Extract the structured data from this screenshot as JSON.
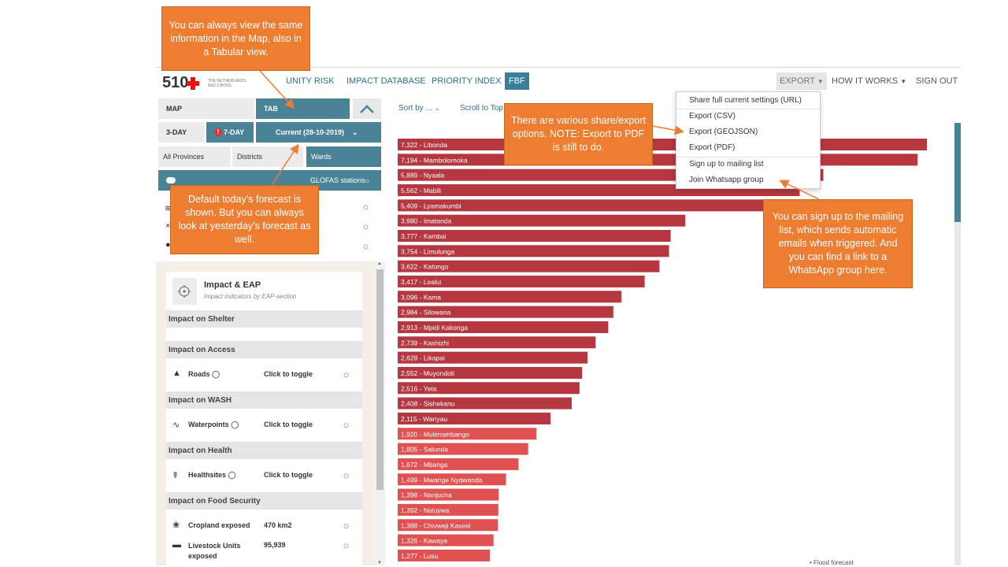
{
  "navbar": {
    "logo_number": "510",
    "logo_org": "THE NETHERLANDS RED CROSS",
    "community_risk_partial": "UNITY RISK",
    "impact_database": "IMPACT DATABASE",
    "priority_index": "PRIORITY INDEX",
    "fbf": "FBF",
    "export": "EXPORT",
    "how_it_works": "HOW IT WORKS",
    "sign_out": "SIGN OUT"
  },
  "view_toggle": {
    "map": "MAP",
    "tab": "TAB"
  },
  "forecast_toggle": {
    "three_day": "3-DAY",
    "seven_day": "7-DAY",
    "current": "Current (28-10-2019)"
  },
  "admin_levels": {
    "all_provinces": "All Provinces",
    "districts": "Districts",
    "wards": "Wards"
  },
  "layer_bar": {
    "glofas": "GLOFAS stations"
  },
  "card": {
    "title": "Impact & EAP",
    "subtitle": "Impact indicators by EAP-section",
    "sections": {
      "shelter": "Impact on Shelter",
      "access": "Impact on Access",
      "wash": "Impact on WASH",
      "health": "Impact on Health",
      "food": "Impact on Food Security"
    },
    "rows": {
      "roads": {
        "label": "Roads",
        "value": "Click to toggle"
      },
      "waterpoints": {
        "label": "Waterpoints",
        "value": "Click to toggle"
      },
      "healthsites": {
        "label": "Healthsites",
        "value": "Click to toggle"
      },
      "cropland": {
        "label": "Cropland exposed",
        "value": "470 km2"
      },
      "livestock": {
        "label": "Livestock Units exposed",
        "value": "95,939"
      }
    }
  },
  "chart_controls": {
    "sort_by": "Sort by ...",
    "scroll_top": "Scroll to Top"
  },
  "export_menu": {
    "share": "Share full current settings (URL)",
    "csv": "Export (CSV)",
    "geojson": "Export (GEOJSON)",
    "pdf": "Export (PDF)",
    "mailing": "Sign up to mailing list",
    "whatsapp": "Join Whatsapp group"
  },
  "callouts": {
    "tab_view": "You can always view the same information in the Map, also in a Tabular view.",
    "forecast": "Default today’s forecast is shown. But you can always look at yesterday’s forecast as well.",
    "export": "There are various share/export options. NOTE: Export to PDF is still to do.",
    "mailing": "You can sign up to the mailing list, which sends automatic emails when triggered. And you can find a link to a  WhatsApp group here."
  },
  "footer_snip": "• Flood forecast",
  "colors": {
    "bar_dark": "#b5373f",
    "bar_light": "#e05252",
    "accent": "#4a8298",
    "callout": "#ed7d31"
  },
  "chart_data": {
    "type": "bar",
    "orientation": "horizontal",
    "categories": [
      "Libonda",
      "Mambolomoka",
      "Nyaala",
      "Mabili",
      "Lyamakumbi",
      "Imatanda",
      "Kambai",
      "Limulunga",
      "Katongo",
      "Lealui",
      "Kama",
      "Silowana",
      "Mpidi Kakonga",
      "Kashizhi",
      "Likapai",
      "Muyondoti",
      "Yeta",
      "Sishekanu",
      "Wanyau",
      "Mulimambango",
      "Salunda",
      "Mbanga",
      "Mwange Nyawanda",
      "Nanjucha",
      "Naluywa",
      "Chivweji Kasesi",
      "Kawaya",
      "Lusu"
    ],
    "values": [
      7322,
      7194,
      5889,
      5562,
      5409,
      3980,
      3777,
      3754,
      3622,
      3417,
      3096,
      2984,
      2913,
      2739,
      2628,
      2552,
      2516,
      2408,
      2115,
      1920,
      1805,
      1672,
      1499,
      1398,
      1392,
      1388,
      1326,
      1277
    ],
    "labels": [
      "7,322",
      "7,194",
      "5,889",
      "5,562",
      "5,409",
      "3,980",
      "3,777",
      "3,754",
      "3,622",
      "3,417",
      "3,096",
      "2,984",
      "2,913",
      "2,739",
      "2,628",
      "2,552",
      "2,516",
      "2,408",
      "2,115",
      "1,920",
      "1,805",
      "1,672",
      "1,499",
      "1,398",
      "1,392",
      "1,388",
      "1,326",
      "1,277"
    ]
  }
}
